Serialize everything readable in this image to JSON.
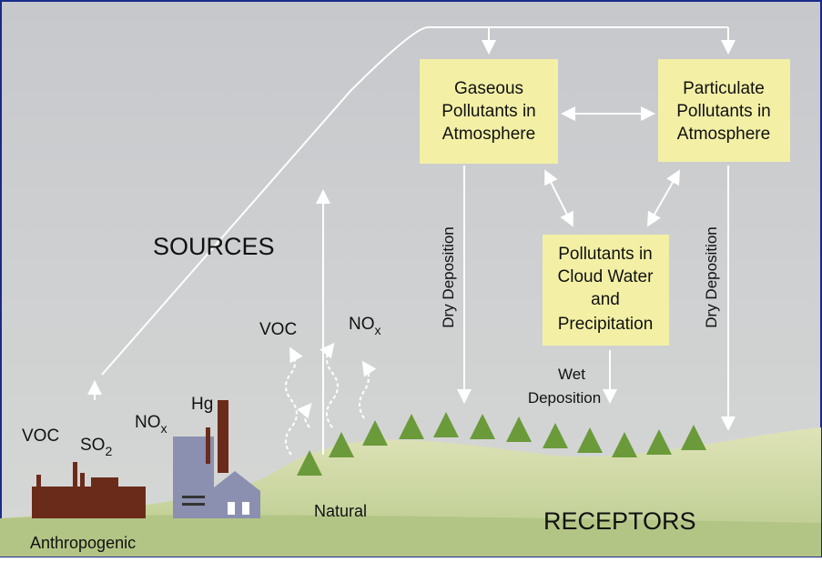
{
  "boxes": [
    {
      "lines": [
        "Gaseous",
        "Pollutants in",
        "Atmosphere"
      ]
    },
    {
      "lines": [
        "Particulate",
        "Pollutants in",
        "Atmosphere"
      ]
    },
    {
      "lines": [
        "Pollutants in",
        "Cloud Water",
        "and",
        "Precipitation"
      ]
    }
  ],
  "labels": {
    "sources": "SOURCES",
    "receptors": "RECEPTORS",
    "natural": "Natural",
    "anthropogenic": "Anthropogenic",
    "wet_deposition": [
      "Wet",
      "Deposition"
    ],
    "dry_deposition_left": "Dry Deposition",
    "dry_deposition_right": "Dry Deposition"
  },
  "emissions": {
    "anthropogenic": [
      {
        "text": "VOC"
      },
      {
        "text": "SO",
        "sub": "2"
      },
      {
        "text": "NO",
        "sub": "x"
      },
      {
        "text": "Hg"
      }
    ],
    "natural": [
      {
        "text": "VOC"
      },
      {
        "text": "NO",
        "sub": "x"
      }
    ]
  }
}
